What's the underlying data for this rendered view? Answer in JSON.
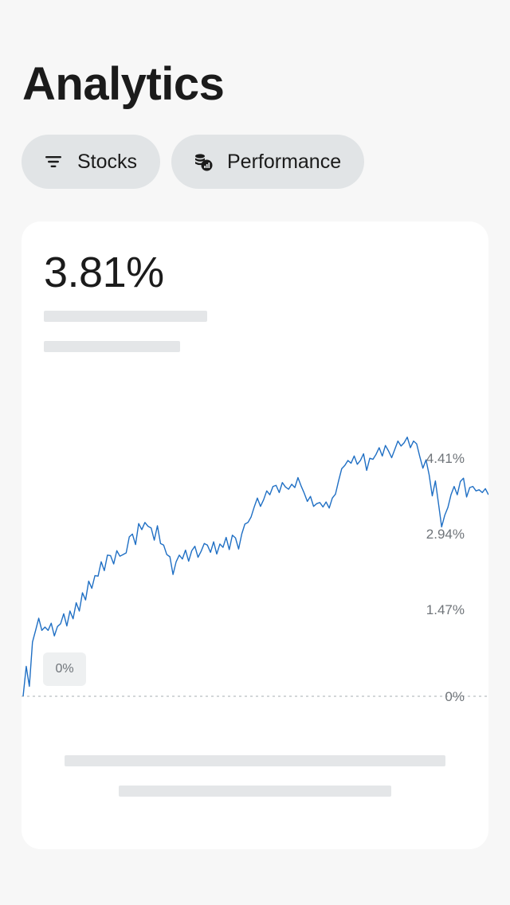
{
  "header": {
    "title": "Analytics"
  },
  "filters": [
    {
      "label": "Stocks",
      "icon": "filter-lines-icon"
    },
    {
      "label": "Performance",
      "icon": "coins-chart-icon"
    }
  ],
  "card": {
    "value": "3.81%",
    "zero_badge": "0%"
  },
  "chart_data": {
    "type": "line",
    "series": [
      {
        "color": "#1f6fc4",
        "values": [
          0.0,
          0.54,
          0.18,
          0.98,
          1.19,
          1.41,
          1.19,
          1.25,
          1.19,
          1.32,
          1.09,
          1.26,
          1.31,
          1.49,
          1.27,
          1.54,
          1.4,
          1.69,
          1.54,
          1.87,
          1.74,
          2.08,
          1.95,
          2.18,
          2.17,
          2.43,
          2.27,
          2.55,
          2.54,
          2.39,
          2.63,
          2.53,
          2.56,
          2.59,
          2.88,
          2.93,
          2.74,
          3.12,
          3.01,
          3.14,
          3.07,
          3.04,
          2.82,
          3.08,
          2.76,
          2.73,
          2.56,
          2.52,
          2.2,
          2.43,
          2.55,
          2.48,
          2.64,
          2.44,
          2.63,
          2.71,
          2.51,
          2.62,
          2.76,
          2.73,
          2.6,
          2.79,
          2.57,
          2.75,
          2.69,
          2.87,
          2.65,
          2.91,
          2.86,
          2.66,
          2.93,
          3.11,
          3.14,
          3.24,
          3.42,
          3.58,
          3.43,
          3.55,
          3.71,
          3.64,
          3.79,
          3.81,
          3.68,
          3.86,
          3.78,
          3.74,
          3.83,
          3.77,
          3.95,
          3.8,
          3.67,
          3.52,
          3.61,
          3.43,
          3.48,
          3.5,
          3.42,
          3.51,
          3.4,
          3.58,
          3.65,
          3.89,
          4.11,
          4.17,
          4.26,
          4.21,
          4.34,
          4.19,
          4.26,
          4.38,
          4.08,
          4.3,
          4.28,
          4.37,
          4.49,
          4.34,
          4.53,
          4.43,
          4.31,
          4.46,
          4.61,
          4.52,
          4.58,
          4.68,
          4.49,
          4.61,
          4.56,
          4.33,
          4.12,
          4.27,
          4.0,
          3.62,
          3.89,
          3.48,
          3.06,
          3.27,
          3.41,
          3.64,
          3.79,
          3.64,
          3.88,
          3.94,
          3.6,
          3.77,
          3.79,
          3.71,
          3.73,
          3.68,
          3.75,
          3.64
        ]
      }
    ],
    "y_ticks": [
      "4.41%",
      "2.94%",
      "1.47%",
      "0%"
    ],
    "ylim": [
      0,
      4.72
    ],
    "baseline": 0,
    "grid": false,
    "legend": "none"
  }
}
